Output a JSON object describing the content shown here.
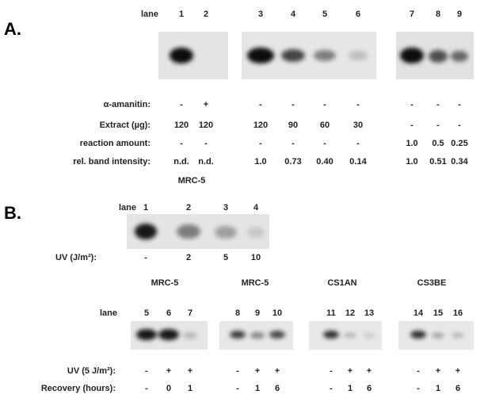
{
  "panel_a": {
    "label": "A.",
    "lane_label": "lane",
    "lanes": [
      "1",
      "2",
      "3",
      "4",
      "5",
      "6",
      "7",
      "8",
      "9"
    ],
    "rows": [
      {
        "label": "α-amanitin:",
        "cells": [
          "-",
          "+",
          "-",
          "-",
          "-",
          "-",
          "-",
          "-",
          "-"
        ]
      },
      {
        "label": "Extract (µg):",
        "cells": [
          "120",
          "120",
          "120",
          "90",
          "60",
          "30",
          "-",
          "-",
          "-"
        ]
      },
      {
        "label": "reaction amount:",
        "cells": [
          "-",
          "-",
          "-",
          "-",
          "-",
          "-",
          "1.0",
          "0.5",
          "0.25"
        ]
      },
      {
        "label": "rel. band intensity:",
        "cells": [
          "n.d.",
          "n.d.",
          "1.0",
          "0.73",
          "0.40",
          "0.14",
          "1.0",
          "0.51",
          "0.34"
        ]
      }
    ]
  },
  "panel_b": {
    "label": "B.",
    "top": {
      "title": "MRC-5",
      "lane_label": "lane",
      "lanes": [
        "1",
        "2",
        "3",
        "4"
      ],
      "uv_label": "UV (J/m²):",
      "uv": [
        "-",
        "2",
        "5",
        "10"
      ]
    },
    "bottom": {
      "lane_label": "lane",
      "uv_label": "UV (5 J/m²):",
      "recovery_label": "Recovery (hours):",
      "groups": [
        {
          "title": "MRC-5",
          "lanes": [
            "5",
            "6",
            "7"
          ],
          "uv": [
            "-",
            "+",
            "+"
          ],
          "recovery": [
            "-",
            "0",
            "1"
          ]
        },
        {
          "title": "MRC-5",
          "lanes": [
            "8",
            "9",
            "10"
          ],
          "uv": [
            "-",
            "+",
            "+"
          ],
          "recovery": [
            "-",
            "1",
            "6"
          ]
        },
        {
          "title": "CS1AN",
          "lanes": [
            "11",
            "12",
            "13"
          ],
          "uv": [
            "-",
            "+",
            "+"
          ],
          "recovery": [
            "-",
            "1",
            "6"
          ]
        },
        {
          "title": "CS3BE",
          "lanes": [
            "14",
            "15",
            "16"
          ],
          "uv": [
            "-",
            "+",
            "+"
          ],
          "recovery": [
            "-",
            "1",
            "6"
          ]
        }
      ]
    }
  }
}
